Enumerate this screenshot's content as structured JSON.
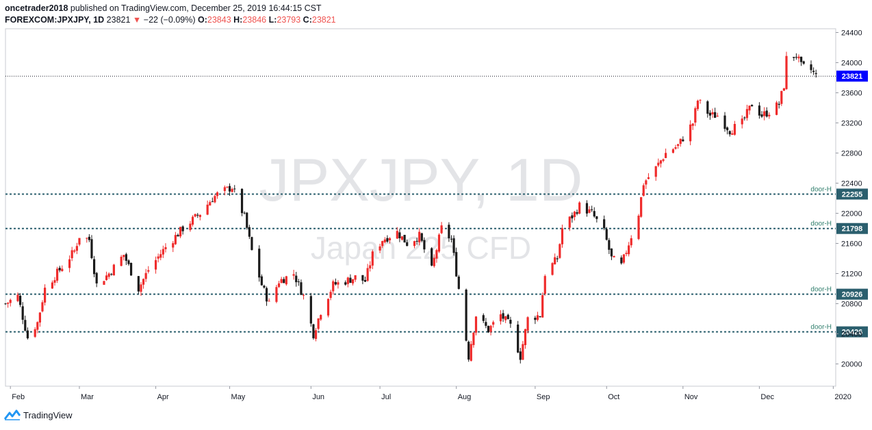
{
  "header": {
    "author": "oncetrader2018",
    "published_text": "published on TradingView.com, December 25, 2019 16:44:15 CST",
    "symbol": "FOREXCOM:JPXJPY, 1D",
    "last": "23821",
    "change": "−22 (−0.09%)",
    "o_label": "O:",
    "o_value": "23843",
    "h_label": "H:",
    "h_value": "23846",
    "l_label": "L:",
    "l_value": "23793",
    "c_label": "C:",
    "c_value": "23821"
  },
  "watermark": {
    "line1": "JPXJPY, 1D",
    "line2": "Japan 225 CFD"
  },
  "footer": {
    "brand": "TradingView",
    "logo_icon": "tradingview-logo-icon"
  },
  "colors": {
    "up": "#ef2b2b",
    "down": "#1a1a1a",
    "level_line": "#2b5f6e",
    "last_price_bg": "#0000ff"
  },
  "chart_data": {
    "type": "candlestick",
    "title": "FOREXCOM:JPXJPY, 1D",
    "ylim": [
      19700,
      24500
    ],
    "y_ticks": [
      20000,
      20400,
      20800,
      21200,
      21600,
      22000,
      22400,
      22800,
      23200,
      23600,
      24000,
      24400
    ],
    "x_ticks": [
      {
        "label": "Feb",
        "date": "2019-02-01"
      },
      {
        "label": "Mar",
        "date": "2019-03-01"
      },
      {
        "label": "Apr",
        "date": "2019-04-01"
      },
      {
        "label": "May",
        "date": "2019-05-01"
      },
      {
        "label": "Jun",
        "date": "2019-06-03"
      },
      {
        "label": "Jul",
        "date": "2019-07-01"
      },
      {
        "label": "Aug",
        "date": "2019-08-01"
      },
      {
        "label": "Sep",
        "date": "2019-09-02"
      },
      {
        "label": "Oct",
        "date": "2019-10-01"
      },
      {
        "label": "Nov",
        "date": "2019-11-01"
      },
      {
        "label": "Dec",
        "date": "2019-12-02"
      },
      {
        "label": "2020",
        "date": "2020-01-01"
      }
    ],
    "x_range": [
      "2019-01-30",
      "2020-01-02"
    ],
    "last_price": 23821,
    "horizontal_levels": [
      {
        "label": "door-H",
        "value": 22255
      },
      {
        "label": "door-H",
        "value": 21798
      },
      {
        "label": "door-H",
        "value": 20926
      },
      {
        "label": "door-H",
        "value": 20426
      }
    ],
    "close_path": [
      [
        "2019-01-30",
        20800
      ],
      [
        "2019-02-04",
        20900
      ],
      [
        "2019-02-08",
        20350
      ],
      [
        "2019-02-12",
        20550
      ],
      [
        "2019-02-15",
        21000
      ],
      [
        "2019-02-21",
        21250
      ],
      [
        "2019-02-27",
        21500
      ],
      [
        "2019-03-01",
        21700
      ],
      [
        "2019-03-05",
        21650
      ],
      [
        "2019-03-08",
        21050
      ],
      [
        "2019-03-13",
        21200
      ],
      [
        "2019-03-19",
        21450
      ],
      [
        "2019-03-25",
        21000
      ],
      [
        "2019-03-29",
        21250
      ],
      [
        "2019-04-05",
        21550
      ],
      [
        "2019-04-12",
        21800
      ],
      [
        "2019-04-19",
        22000
      ],
      [
        "2019-04-24",
        22200
      ],
      [
        "2019-04-26",
        22250
      ],
      [
        "2019-05-02",
        22350
      ],
      [
        "2019-05-07",
        21950
      ],
      [
        "2019-05-10",
        21500
      ],
      [
        "2019-05-14",
        21050
      ],
      [
        "2019-05-17",
        20800
      ],
      [
        "2019-05-21",
        21100
      ],
      [
        "2019-05-27",
        21200
      ],
      [
        "2019-05-31",
        20900
      ],
      [
        "2019-06-04",
        20400
      ],
      [
        "2019-06-07",
        20700
      ],
      [
        "2019-06-12",
        21050
      ],
      [
        "2019-06-17",
        21100
      ],
      [
        "2019-06-21",
        21150
      ],
      [
        "2019-06-25",
        21100
      ],
      [
        "2019-06-28",
        21450
      ],
      [
        "2019-07-02",
        21650
      ],
      [
        "2019-07-08",
        21750
      ],
      [
        "2019-07-12",
        21600
      ],
      [
        "2019-07-17",
        21700
      ],
      [
        "2019-07-22",
        21250
      ],
      [
        "2019-07-26",
        21800
      ],
      [
        "2019-07-30",
        21650
      ],
      [
        "2019-08-02",
        21000
      ],
      [
        "2019-08-06",
        20100
      ],
      [
        "2019-08-09",
        20650
      ],
      [
        "2019-08-14",
        20450
      ],
      [
        "2019-08-19",
        20650
      ],
      [
        "2019-08-23",
        20500
      ],
      [
        "2019-08-27",
        20100
      ],
      [
        "2019-08-30",
        20600
      ],
      [
        "2019-09-04",
        20650
      ],
      [
        "2019-09-06",
        21200
      ],
      [
        "2019-09-11",
        21400
      ],
      [
        "2019-09-13",
        21800
      ],
      [
        "2019-09-18",
        22000
      ],
      [
        "2019-09-20",
        22100
      ],
      [
        "2019-09-25",
        22000
      ],
      [
        "2019-09-30",
        21750
      ],
      [
        "2019-10-03",
        21400
      ],
      [
        "2019-10-07",
        21300
      ],
      [
        "2019-10-10",
        21600
      ],
      [
        "2019-10-14",
        22000
      ],
      [
        "2019-10-16",
        22400
      ],
      [
        "2019-10-21",
        22600
      ],
      [
        "2019-10-25",
        22800
      ],
      [
        "2019-10-30",
        22900
      ],
      [
        "2019-11-05",
        23200
      ],
      [
        "2019-11-07",
        23500
      ],
      [
        "2019-11-12",
        23300
      ],
      [
        "2019-11-15",
        23300
      ],
      [
        "2019-11-20",
        23100
      ],
      [
        "2019-11-25",
        23200
      ],
      [
        "2019-11-29",
        23450
      ],
      [
        "2019-12-03",
        23300
      ],
      [
        "2019-12-06",
        23350
      ],
      [
        "2019-12-10",
        23450
      ],
      [
        "2019-12-12",
        23700
      ],
      [
        "2019-12-13",
        24050
      ],
      [
        "2019-12-17",
        24100
      ],
      [
        "2019-12-19",
        23950
      ],
      [
        "2019-12-23",
        23900
      ],
      [
        "2019-12-25",
        23821
      ]
    ]
  }
}
